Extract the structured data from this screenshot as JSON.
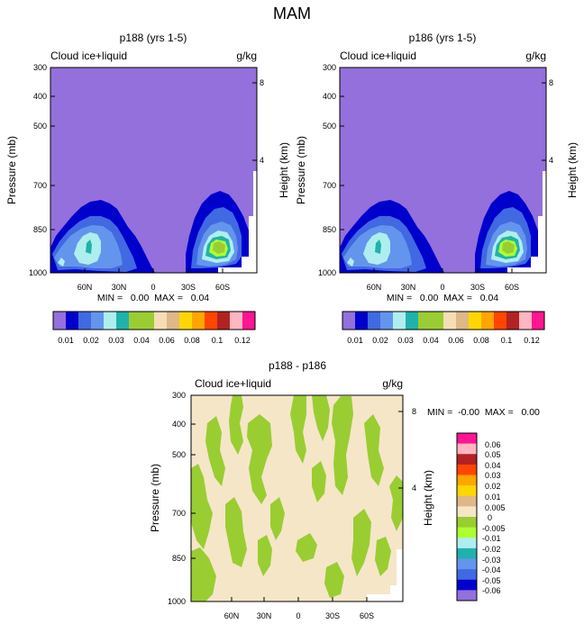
{
  "page_title": "MAM",
  "colors": {
    "ctrl_levels": [
      "#9370db",
      "#0000cd",
      "#4169e1",
      "#6495ed",
      "#afeeee",
      "#20b2aa",
      "#9acd32",
      "#9acd32",
      "#f5deb3",
      "#deb887",
      "#ffd700",
      "#ffa500",
      "#ff4500",
      "#b22222",
      "#ffb6c1",
      "#ff1493"
    ],
    "diff_levels": [
      "#9370db",
      "#0000cd",
      "#4169e1",
      "#6495ed",
      "#20b2aa",
      "#afeeee",
      "#adff2f",
      "#9acd32",
      "#f5e6c8",
      "#deb887",
      "#ffd700",
      "#ffa500",
      "#ff4500",
      "#b22222",
      "#ffb6c1",
      "#ff1493"
    ],
    "missing": "#ffffff"
  },
  "chart_data": [
    {
      "id": "p188",
      "type": "heatmap",
      "title": "p188 (yrs 1-5)",
      "left_label": "Cloud ice+liquid",
      "right_label": "g/kg",
      "ylabel": "Pressure (mb)",
      "y2label": "Height (km)",
      "yticks": [
        "300",
        "400",
        "500",
        "700",
        "850",
        "1000"
      ],
      "y2ticks": [
        "8",
        "4"
      ],
      "xticks": [
        "60N",
        "30N",
        "0",
        "30S",
        "60S"
      ],
      "stats_text": "MIN =   0.00  MAX =   0.04",
      "colorbar_labels": [
        "0.01",
        "0.02",
        "0.03",
        "0.04",
        "0.06",
        "0.08",
        "0.1",
        "0.12"
      ],
      "contour_levels": [
        0.005,
        0.01,
        0.015,
        0.02,
        0.025,
        0.03,
        0.035,
        0.04,
        0.06,
        0.07,
        0.08,
        0.09,
        0.1,
        0.11,
        0.12
      ],
      "ylim": [
        1000,
        300
      ],
      "xlim": [
        90,
        -90
      ],
      "min": 0.0,
      "max": 0.04
    },
    {
      "id": "p186",
      "type": "heatmap",
      "title": "p186 (yrs 1-5)",
      "left_label": "Cloud ice+liquid",
      "right_label": "g/kg",
      "ylabel": "Pressure (mb)",
      "y2label": "Height (km)",
      "yticks": [
        "300",
        "400",
        "500",
        "700",
        "850",
        "1000"
      ],
      "y2ticks": [
        "8",
        "4"
      ],
      "xticks": [
        "60N",
        "30N",
        "0",
        "30S",
        "60S"
      ],
      "stats_text": "MIN =   0.00  MAX =   0.04",
      "colorbar_labels": [
        "0.01",
        "0.02",
        "0.03",
        "0.04",
        "0.06",
        "0.08",
        "0.1",
        "0.12"
      ],
      "contour_levels": [
        0.005,
        0.01,
        0.015,
        0.02,
        0.025,
        0.03,
        0.035,
        0.04,
        0.06,
        0.07,
        0.08,
        0.09,
        0.1,
        0.11,
        0.12
      ],
      "ylim": [
        1000,
        300
      ],
      "xlim": [
        90,
        -90
      ],
      "min": 0.0,
      "max": 0.04
    },
    {
      "id": "diff",
      "type": "heatmap",
      "title": "p188 - p186",
      "left_label": "Cloud ice+liquid",
      "right_label": "g/kg",
      "ylabel": "Pressure (mb)",
      "y2label": "Height (km)",
      "yticks": [
        "300",
        "400",
        "500",
        "700",
        "850",
        "1000"
      ],
      "y2ticks": [
        "8",
        "4"
      ],
      "xticks": [
        "60N",
        "30N",
        "0",
        "30S",
        "60S"
      ],
      "stats_text": "MIN =  -0.00  MAX =   0.00",
      "colorbar_labels": [
        "0.06",
        "0.05",
        "0.04",
        "0.03",
        "0.02",
        "0.01",
        "0.005",
        "0",
        "-0.005",
        "-0.01",
        "-0.02",
        "-0.03",
        "-0.04",
        "-0.05",
        "-0.06"
      ],
      "ylim": [
        1000,
        300
      ],
      "xlim": [
        90,
        -90
      ],
      "min": -0.0,
      "max": 0.0
    }
  ]
}
